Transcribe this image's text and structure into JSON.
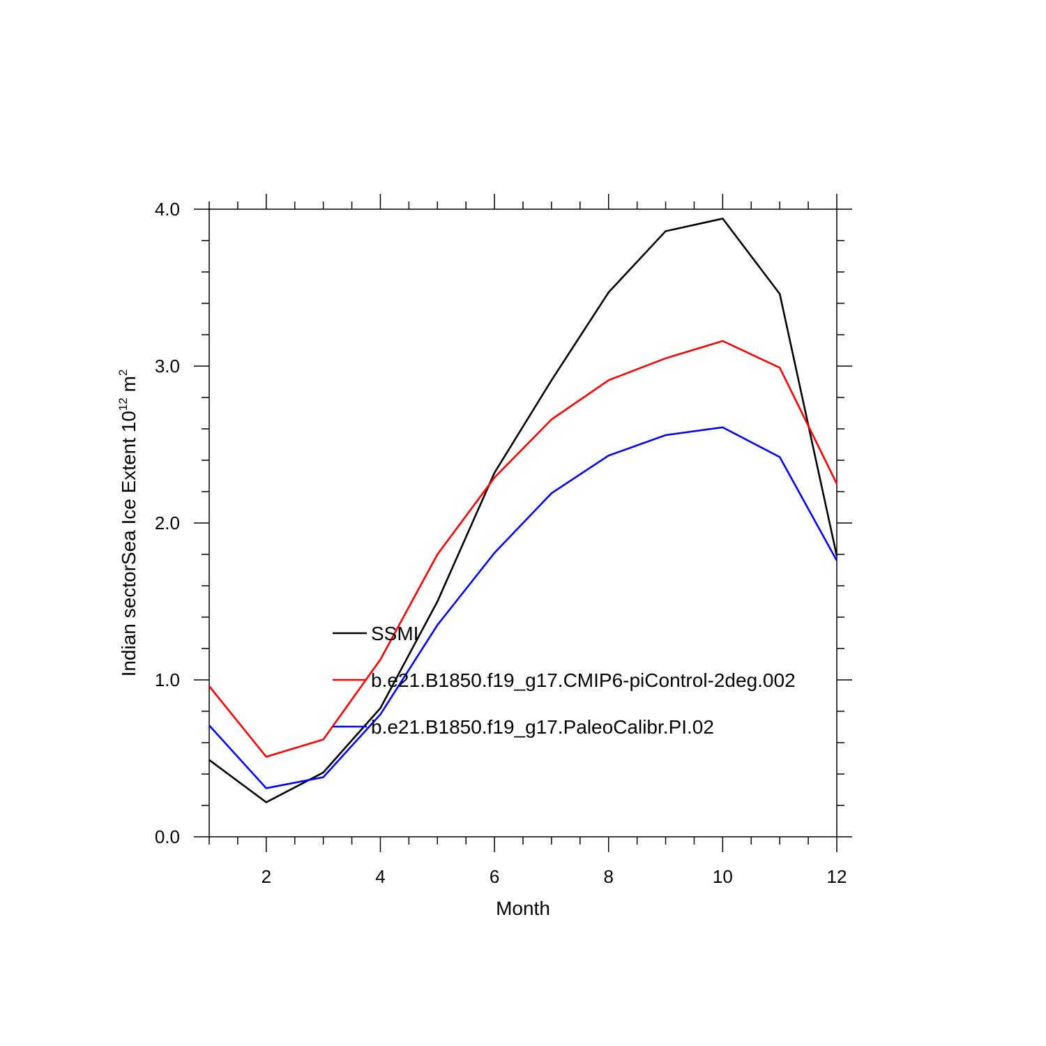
{
  "chart_data": {
    "type": "line",
    "xlabel": "Month",
    "ylabel": {
      "prefix": "Indian sectorSea Ice Extent 10",
      "exp1": "12",
      "unit": " m",
      "exp2": "2"
    },
    "xlim": [
      1,
      12
    ],
    "ylim": [
      0,
      4
    ],
    "x_ticks": [
      2,
      4,
      6,
      8,
      10,
      12
    ],
    "x_tick_labels": [
      "2",
      "4",
      "6",
      "8",
      "10",
      "12"
    ],
    "y_ticks": [
      0,
      1,
      2,
      3,
      4
    ],
    "y_tick_labels": [
      "0.0",
      "1.0",
      "2.0",
      "3.0",
      "4.0"
    ],
    "x": [
      1,
      2,
      3,
      4,
      5,
      6,
      7,
      8,
      9,
      10,
      11,
      12
    ],
    "series": [
      {
        "name": "SSMI",
        "color": "#000000",
        "values": [
          0.49,
          0.22,
          0.41,
          0.82,
          1.5,
          2.32,
          2.91,
          3.47,
          3.86,
          3.94,
          3.46,
          1.79
        ]
      },
      {
        "name": "b.e21.B1850.f19_g17.CMIP6-piControl-2deg.002",
        "color": "#ff0000",
        "values": [
          0.96,
          0.51,
          0.62,
          1.13,
          1.8,
          2.29,
          2.66,
          2.91,
          3.05,
          3.16,
          2.99,
          2.25
        ]
      },
      {
        "name": "b.e21.B1850.f19_g17.PaleoCalibr.PI.02",
        "color": "#0000ff",
        "values": [
          0.71,
          0.31,
          0.38,
          0.78,
          1.35,
          1.81,
          2.19,
          2.43,
          2.56,
          2.61,
          2.42,
          1.76
        ]
      }
    ],
    "grid": false,
    "legend_position": "inside, center-left"
  }
}
